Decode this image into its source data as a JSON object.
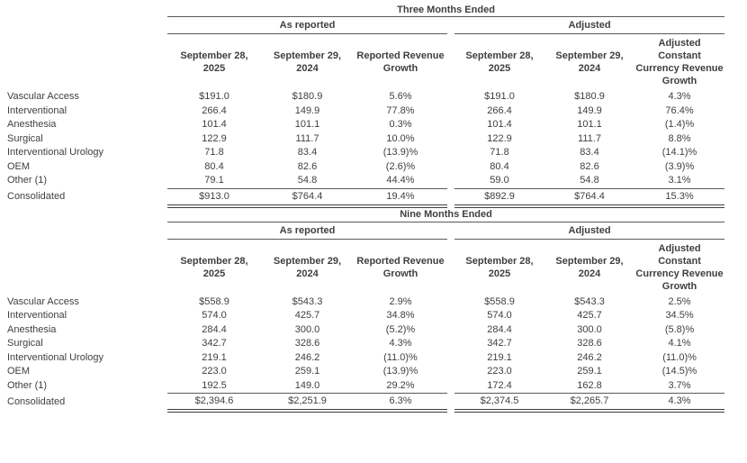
{
  "page": {
    "background": "#ffffff",
    "text_color": "#3f3f3f",
    "rule_color": "#595959"
  },
  "tables": [
    {
      "name": "three-months-ended",
      "title": "Three Months Ended",
      "group_headers": [
        {
          "label": "As reported"
        },
        {
          "label": "Adjusted"
        }
      ],
      "column_headers": [
        "September 28,\n2025",
        "September 29,\n2024",
        "Reported Revenue\nGrowth",
        "September 28,\n2025",
        "September 29,\n2024",
        "Adjusted\nConstant\nCurrency Revenue\nGrowth"
      ],
      "rows": [
        {
          "label": "Vascular Access",
          "values": [
            "$191.0",
            "$180.9",
            "5.6%",
            "$191.0",
            "$180.9",
            "4.3%"
          ]
        },
        {
          "label": "Interventional",
          "values": [
            "266.4",
            "149.9",
            "77.8%",
            "266.4",
            "149.9",
            "76.4%"
          ]
        },
        {
          "label": "Anesthesia",
          "values": [
            "101.4",
            "101.1",
            "0.3%",
            "101.4",
            "101.1",
            "(1.4)%"
          ]
        },
        {
          "label": "Surgical",
          "values": [
            "122.9",
            "111.7",
            "10.0%",
            "122.9",
            "111.7",
            "8.8%"
          ]
        },
        {
          "label": "Interventional Urology",
          "values": [
            "71.8",
            "83.4",
            "(13.9)%",
            "71.8",
            "83.4",
            "(14.1)%"
          ]
        },
        {
          "label": "OEM",
          "values": [
            "80.4",
            "82.6",
            "(2.6)%",
            "80.4",
            "82.6",
            "(3.9)%"
          ]
        },
        {
          "label": "Other (1)",
          "values": [
            "79.1",
            "54.8",
            "44.4%",
            "59.0",
            "54.8",
            "3.1%"
          ],
          "underline": true
        },
        {
          "label": "Consolidated",
          "values": [
            "$913.0",
            "$764.4",
            "19.4%",
            "$892.9",
            "$764.4",
            "15.3%"
          ],
          "total": true
        }
      ]
    },
    {
      "name": "nine-months-ended",
      "title": "Nine Months Ended",
      "group_headers": [
        {
          "label": "As reported"
        },
        {
          "label": "Adjusted"
        }
      ],
      "column_headers": [
        "September 28,\n2025",
        "September 29,\n2024",
        "Reported Revenue\nGrowth",
        "September 28,\n2025",
        "September 29,\n2024",
        "Adjusted\nConstant\nCurrency Revenue\nGrowth"
      ],
      "rows": [
        {
          "label": "Vascular Access",
          "values": [
            "$558.9",
            "$543.3",
            "2.9%",
            "$558.9",
            "$543.3",
            "2.5%"
          ]
        },
        {
          "label": "Interventional",
          "values": [
            "574.0",
            "425.7",
            "34.8%",
            "574.0",
            "425.7",
            "34.5%"
          ]
        },
        {
          "label": "Anesthesia",
          "values": [
            "284.4",
            "300.0",
            "(5.2)%",
            "284.4",
            "300.0",
            "(5.8)%"
          ]
        },
        {
          "label": "Surgical",
          "values": [
            "342.7",
            "328.6",
            "4.3%",
            "342.7",
            "328.6",
            "4.1%"
          ]
        },
        {
          "label": "Interventional Urology",
          "values": [
            "219.1",
            "246.2",
            "(11.0)%",
            "219.1",
            "246.2",
            "(11.0)%"
          ]
        },
        {
          "label": "OEM",
          "values": [
            "223.0",
            "259.1",
            "(13.9)%",
            "223.0",
            "259.1",
            "(14.5)%"
          ]
        },
        {
          "label": "Other (1)",
          "values": [
            "192.5",
            "149.0",
            "29.2%",
            "172.4",
            "162.8",
            "3.7%"
          ],
          "underline": true
        },
        {
          "label": "Consolidated",
          "values": [
            "$2,394.6",
            "$2,251.9",
            "6.3%",
            "$2,374.5",
            "$2,265.7",
            "4.3%"
          ],
          "total": true
        }
      ]
    }
  ]
}
